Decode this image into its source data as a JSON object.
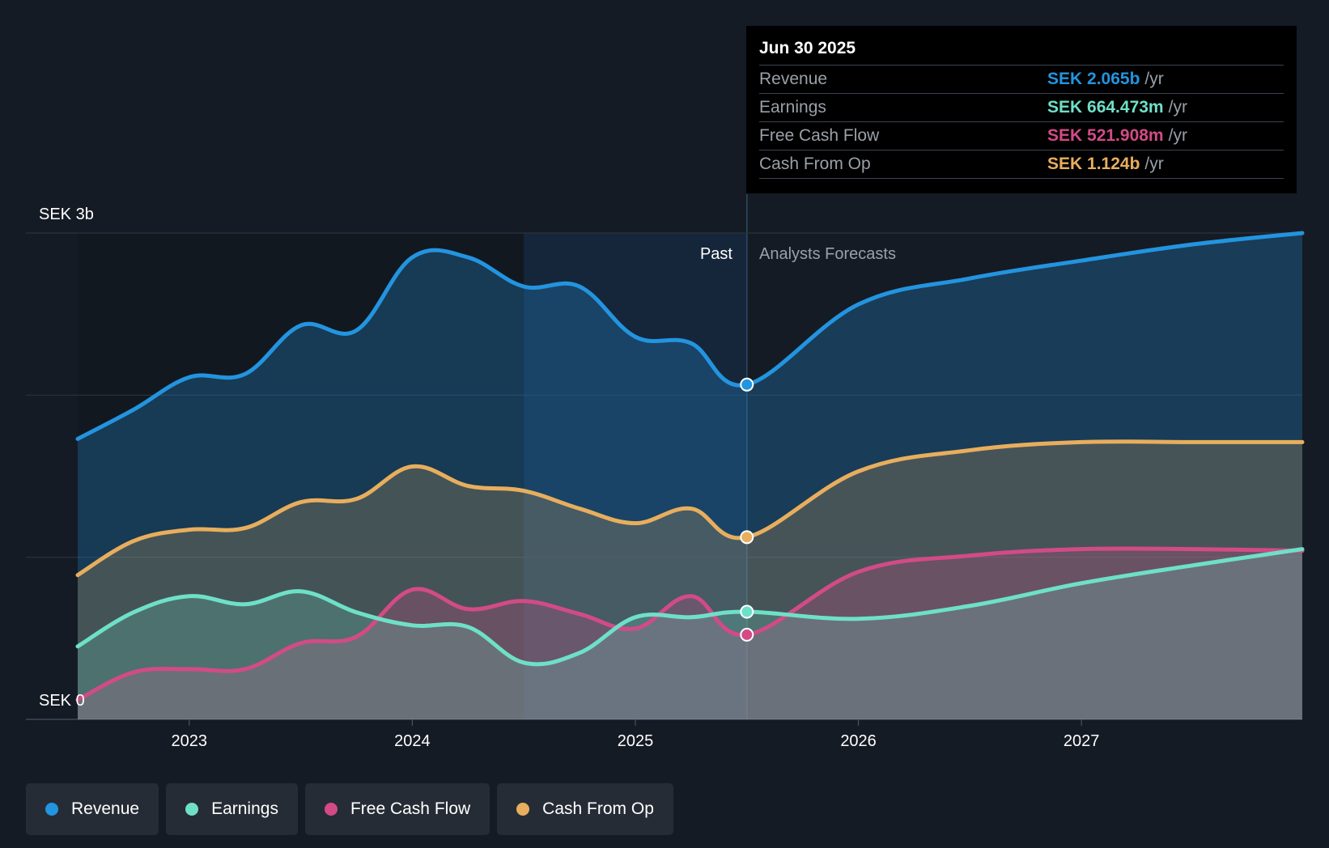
{
  "chart_data": {
    "type": "area",
    "title": "",
    "y_axis": {
      "top_label": "SEK 3b",
      "bottom_label": "SEK 0",
      "min": 0,
      "max": 3.0,
      "unit": "SEK b"
    },
    "x_axis": {
      "ticks": [
        "2023",
        "2024",
        "2025",
        "2026",
        "2027"
      ],
      "tick_values": [
        2023.0,
        2024.0,
        2025.0,
        2026.0,
        2027.0
      ],
      "range": [
        2022.5,
        2027.99
      ]
    },
    "divider": {
      "x": 2025.5,
      "past_label": "Past",
      "forecast_label": "Analysts Forecasts",
      "highlight_start": 2024.5
    },
    "series": [
      {
        "name": "Revenue",
        "color": "#2394df",
        "x": [
          2022.5,
          2022.75,
          2023.0,
          2023.25,
          2023.5,
          2023.75,
          2024.0,
          2024.25,
          2024.5,
          2024.75,
          2025.0,
          2025.25,
          2025.5,
          2026.0,
          2026.5,
          2027.0,
          2027.5,
          2027.99
        ],
        "values": [
          1.73,
          1.91,
          2.11,
          2.13,
          2.43,
          2.4,
          2.85,
          2.85,
          2.67,
          2.67,
          2.36,
          2.32,
          2.065,
          2.56,
          2.72,
          2.83,
          2.93,
          3.0
        ]
      },
      {
        "name": "Earnings",
        "color": "#6ee0c8",
        "x": [
          2022.5,
          2022.75,
          2023.0,
          2023.25,
          2023.5,
          2023.75,
          2024.0,
          2024.25,
          2024.5,
          2024.75,
          2025.0,
          2025.25,
          2025.5,
          2026.0,
          2026.5,
          2027.0,
          2027.5,
          2027.99
        ],
        "values": [
          0.45,
          0.66,
          0.76,
          0.71,
          0.79,
          0.66,
          0.58,
          0.57,
          0.35,
          0.41,
          0.63,
          0.63,
          0.664,
          0.62,
          0.7,
          0.84,
          0.95,
          1.05
        ]
      },
      {
        "name": "Free Cash Flow",
        "color": "#d24b86",
        "x": [
          2022.5,
          2022.75,
          2023.0,
          2023.25,
          2023.5,
          2023.75,
          2024.0,
          2024.25,
          2024.5,
          2024.75,
          2025.0,
          2025.25,
          2025.5,
          2026.0,
          2026.5,
          2027.0,
          2027.5,
          2027.99
        ],
        "values": [
          0.12,
          0.29,
          0.31,
          0.31,
          0.47,
          0.51,
          0.8,
          0.68,
          0.73,
          0.65,
          0.56,
          0.76,
          0.522,
          0.91,
          1.01,
          1.05,
          1.05,
          1.04
        ]
      },
      {
        "name": "Cash From Op",
        "color": "#e8ae5d",
        "x": [
          2022.5,
          2022.75,
          2023.0,
          2023.25,
          2023.5,
          2023.75,
          2024.0,
          2024.25,
          2024.5,
          2024.75,
          2025.0,
          2025.25,
          2025.5,
          2026.0,
          2026.5,
          2027.0,
          2027.5,
          2027.99
        ],
        "values": [
          0.89,
          1.1,
          1.17,
          1.18,
          1.34,
          1.36,
          1.56,
          1.44,
          1.41,
          1.3,
          1.21,
          1.3,
          1.124,
          1.53,
          1.66,
          1.71,
          1.71,
          1.71
        ]
      }
    ],
    "tooltip": {
      "date": "Jun 30 2025",
      "rows": [
        {
          "name": "Revenue",
          "value": "SEK 2.065b",
          "unit": "/yr",
          "color": "#2394df"
        },
        {
          "name": "Earnings",
          "value": "SEK 664.473m",
          "unit": "/yr",
          "color": "#6ee0c8"
        },
        {
          "name": "Free Cash Flow",
          "value": "SEK 521.908m",
          "unit": "/yr",
          "color": "#d24b86"
        },
        {
          "name": "Cash From Op",
          "value": "SEK 1.124b",
          "unit": "/yr",
          "color": "#e8ae5d"
        }
      ]
    },
    "legend": [
      {
        "label": "Revenue",
        "color": "#2394df"
      },
      {
        "label": "Earnings",
        "color": "#6ee0c8"
      },
      {
        "label": "Free Cash Flow",
        "color": "#d24b86"
      },
      {
        "label": "Cash From Op",
        "color": "#e8ae5d"
      }
    ]
  }
}
